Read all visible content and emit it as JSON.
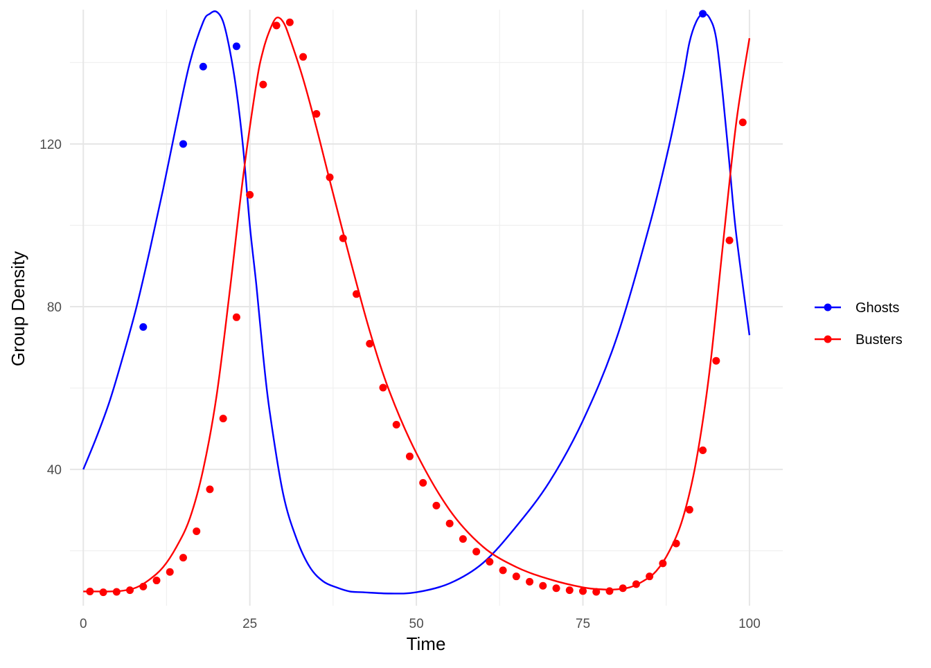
{
  "chart_data": {
    "type": "line",
    "title": "",
    "xlabel": "Time",
    "ylabel": "Group Density",
    "xlim": [
      -2,
      105
    ],
    "ylim": [
      6.5,
      153
    ],
    "x_ticks": [
      0,
      25,
      50,
      75,
      100
    ],
    "y_ticks": [
      40,
      80,
      120
    ],
    "grid": true,
    "legend_position": "right",
    "series": [
      {
        "name": "Ghosts",
        "color": "#0000ff",
        "line": {
          "x": [
            0,
            2,
            4,
            6,
            8,
            10,
            12,
            14,
            16,
            18,
            19,
            20,
            21,
            22,
            23,
            24,
            25,
            26,
            27,
            28,
            30,
            32,
            34,
            36,
            38,
            40,
            42,
            46,
            50,
            55,
            60,
            65,
            70,
            75,
            80,
            85,
            88,
            90,
            91,
            92,
            93,
            94,
            95,
            96,
            97,
            98,
            100
          ],
          "y": [
            40,
            48,
            57,
            68,
            80,
            94,
            109,
            125,
            140,
            150,
            152,
            152.5,
            150,
            143,
            133,
            119,
            100,
            85,
            68,
            54,
            34,
            23,
            16,
            12.5,
            11,
            10,
            9.8,
            9.5,
            9.8,
            12,
            17,
            26,
            37,
            52,
            72,
            100,
            120,
            136,
            145,
            150,
            152,
            151,
            146,
            132,
            115,
            98,
            73
          ]
        },
        "points": {
          "x": [
            9,
            15,
            18,
            23,
            93
          ],
          "y": [
            75,
            120,
            139,
            144,
            152
          ]
        }
      },
      {
        "name": "Busters",
        "color": "#ff0000",
        "line": {
          "x": [
            0,
            2,
            4,
            6,
            8,
            10,
            12,
            14,
            16,
            18,
            20,
            22,
            24,
            26,
            27,
            28,
            29,
            30,
            31,
            33,
            35,
            37,
            40,
            43,
            46,
            50,
            55,
            60,
            65,
            70,
            75,
            78,
            80,
            82,
            84,
            86,
            88,
            90,
            92,
            94,
            96,
            98,
            100
          ],
          "y": [
            10,
            10,
            10,
            10.2,
            11,
            13,
            16,
            21,
            28,
            40,
            58,
            84,
            112,
            135,
            143,
            148,
            151,
            150,
            146,
            136,
            124,
            111,
            92,
            74,
            59,
            44,
            30,
            21,
            16,
            13,
            11,
            10.5,
            10.5,
            11,
            12.5,
            15,
            20,
            28,
            42,
            64,
            95,
            125,
            146
          ]
        },
        "points": {
          "x": [
            1,
            3,
            5,
            7,
            9,
            11,
            13,
            15,
            17,
            19,
            21,
            23,
            25,
            27,
            29,
            31,
            33,
            35,
            37,
            39,
            41,
            43,
            45,
            47,
            49,
            51,
            53,
            55,
            57,
            59,
            61,
            63,
            65,
            67,
            69,
            71,
            73,
            75,
            77,
            79,
            81,
            83,
            85,
            87,
            89,
            91,
            93,
            95,
            97,
            99
          ],
          "y": [
            10,
            9.8,
            9.9,
            10.3,
            11.2,
            12.7,
            14.8,
            18.3,
            24.8,
            35.1,
            52.5,
            77.4,
            107.5,
            134.6,
            149.1,
            149.9,
            141.4,
            127.4,
            111.8,
            96.8,
            83.1,
            70.9,
            60.1,
            51,
            43.2,
            36.7,
            31.1,
            26.7,
            22.9,
            19.8,
            17.3,
            15.2,
            13.7,
            12.4,
            11.4,
            10.8,
            10.3,
            10.1,
            9.9,
            10.1,
            10.8,
            11.8,
            13.7,
            16.9,
            21.8,
            30.1,
            44.7,
            66.7,
            96.3,
            125.3
          ]
        }
      }
    ]
  }
}
